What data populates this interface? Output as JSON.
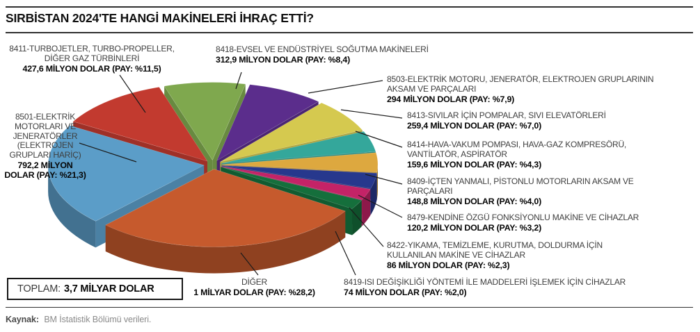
{
  "header": {
    "title": "SIRBİSTAN 2024'TE HANGİ MAKİNELERİ İHRAÇ ETTİ?"
  },
  "total": {
    "label": "TOPLAM:",
    "value": "3,7 MİLYAR DOLAR"
  },
  "source": {
    "label": "Kaynak:",
    "text": "BM İstatistik Bölümü verileri."
  },
  "chart_data": {
    "type": "pie",
    "title": "SIRBİSTAN 2024'TE HANGİ MAKİNELERİ İHRAÇ ETTİ?",
    "style": "3d-exploded-pie",
    "total_text": "TOPLAM: 3,7 MİLYAR DOLAR",
    "unit": "MİLYON DOLAR",
    "slices": [
      {
        "code": "8418",
        "label": "8418-EVSEL VE ENDÜSTRİYEL SOĞUTMA MAKİNELERİ",
        "value_musd": 312.9,
        "share_pct": 8.4,
        "value_line": "312,9 MİLYON DOLAR (PAY: %8,4)",
        "color": "#7fa84e"
      },
      {
        "code": "8503",
        "label": "8503-ELEKTRİK MOTORU, JENERATÖR, ELEKTROJEN GRUPLARININ AKSAM VE PARÇALARI",
        "value_musd": 294,
        "share_pct": 7.9,
        "value_line": "294 MİLYON DOLAR (PAY: %7,9)",
        "color": "#5b2d8c"
      },
      {
        "code": "8413",
        "label": "8413-SIVILAR İÇİN POMPALAR, SIVI ELEVATÖRLERİ",
        "value_musd": 259.4,
        "share_pct": 7.0,
        "value_line": "259,4 MİLYON DOLAR (PAY: %7,0)",
        "color": "#d5c94f"
      },
      {
        "code": "8414",
        "label": "8414-HAVA-VAKUM POMPASI, HAVA-GAZ KOMPRESÖRÜ, VANTİLATÖR, ASPİRATÖR",
        "value_musd": 159.6,
        "share_pct": 4.3,
        "value_line": "159,6 MİLYON DOLAR (PAY: %4,3)",
        "color": "#34a79b"
      },
      {
        "code": "8409",
        "label": "8409-İÇTEN YANMALI, PİSTONLU MOTORLARIN AKSAM VE PARÇALARI",
        "value_musd": 148.8,
        "share_pct": 4.0,
        "value_line": "148,8 MİLYON DOLAR (PAY: %4,0)",
        "color": "#dda83f"
      },
      {
        "code": "8479",
        "label": "8479-KENDİNE ÖZGÜ FONKSİYONLU MAKİNE VE CİHAZLAR",
        "value_musd": 120.2,
        "share_pct": 3.2,
        "value_line": "120,2 MİLYON DOLAR (PAY: %3,2)",
        "color": "#27388d"
      },
      {
        "code": "8422",
        "label": "8422-YIKAMA, TEMİZLEME, KURUTMA, DOLDURMA İÇİN KULLANILAN MAKİNE VE CİHAZLAR",
        "value_musd": 86,
        "share_pct": 2.3,
        "value_line": "86 MİLYON DOLAR (PAY: %2,3)",
        "color": "#c42367"
      },
      {
        "code": "8419",
        "label": "8419-ISI DEĞİŞİKLİĞİ YÖNTEMİ İLE MADDELERİ İŞLEMEK İÇİN CİHAZLAR",
        "value_musd": 74,
        "share_pct": 2.0,
        "value_line": "74 MİLYON DOLAR (PAY: %2,0)",
        "color": "#156f3c"
      },
      {
        "code": "DIGER",
        "label": "DİĞER",
        "value_musd": 1000,
        "share_pct": 28.2,
        "value_line": "1 MİLYAR DOLAR (PAY: %28,2)",
        "color": "#c65a2d"
      },
      {
        "code": "8501",
        "label": "8501-ELEKTRİK MOTORLARI VE JENERATÖRLER (ELEKTROJEN GRUPLARI HARİÇ)",
        "value_musd": 792.2,
        "share_pct": 21.3,
        "value_line": "792,2 MİLYON DOLAR (PAY: %21,3)",
        "color": "#5b9dc8"
      },
      {
        "code": "8411",
        "label": "8411-TURBOJETLER, TURBO-PROPELLER, DİĞER GAZ TÜRBİNLERİ",
        "value_musd": 427.6,
        "share_pct": 11.5,
        "value_line": "427,6 MİLYON DOLAR (PAY: %11,5)",
        "color": "#c23a2f"
      }
    ],
    "legend_position": "callouts-around-pie",
    "grid": false
  }
}
